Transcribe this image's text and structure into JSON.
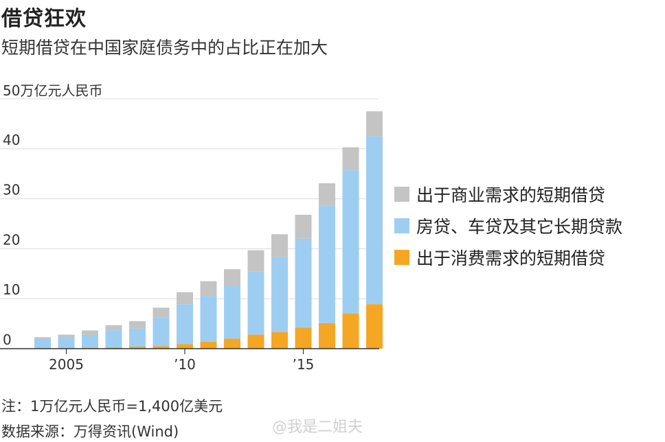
{
  "header": {
    "title": "借贷狂欢",
    "subtitle": "短期借贷在中国家庭债务中的占比正在加大"
  },
  "footer": {
    "note": "注：1万亿元人民币=1,400亿美元",
    "source": "数据来源：万得资讯(Wind)"
  },
  "watermark": "@我是二姐夫",
  "chart_data": {
    "type": "bar",
    "stacked": true,
    "unit_label": "50万亿元人民币",
    "ylim": [
      0,
      50
    ],
    "yticks": [
      0,
      10,
      20,
      30,
      40,
      50
    ],
    "ytick_labels": [
      "0",
      "10",
      "20",
      "30",
      "40",
      ""
    ],
    "categories": [
      "2004",
      "2005",
      "2006",
      "2007",
      "2008",
      "2009",
      "2010",
      "2011",
      "2012",
      "2013",
      "2014",
      "2015",
      "2016",
      "2017",
      "2018"
    ],
    "xtick_labels": [
      {
        "category": "2005",
        "label": "2005"
      },
      {
        "category": "2010",
        "label": "’10"
      },
      {
        "category": "2015",
        "label": "’15"
      }
    ],
    "grid": true,
    "legend_position": "right",
    "series": [
      {
        "name": "出于消费需求的短期借贷",
        "color": "#f5a623",
        "values": [
          0.1,
          0.1,
          0.15,
          0.2,
          0.4,
          0.5,
          0.9,
          1.4,
          2.0,
          2.8,
          3.3,
          4.2,
          5.1,
          7.0,
          8.9
        ]
      },
      {
        "name": "房贷、车贷及其它长期贷款",
        "color": "#9dcef2",
        "values": [
          1.9,
          2.1,
          2.6,
          3.5,
          3.6,
          5.8,
          8.0,
          9.1,
          10.5,
          12.6,
          15.0,
          17.8,
          23.5,
          28.7,
          33.6
        ]
      },
      {
        "name": "出于商业需求的短期借贷",
        "color": "#c4c4c4",
        "values": [
          0.3,
          0.6,
          0.9,
          1.0,
          1.5,
          1.9,
          2.4,
          3.0,
          3.4,
          4.3,
          4.6,
          4.8,
          4.5,
          4.6,
          5.0
        ]
      }
    ]
  }
}
